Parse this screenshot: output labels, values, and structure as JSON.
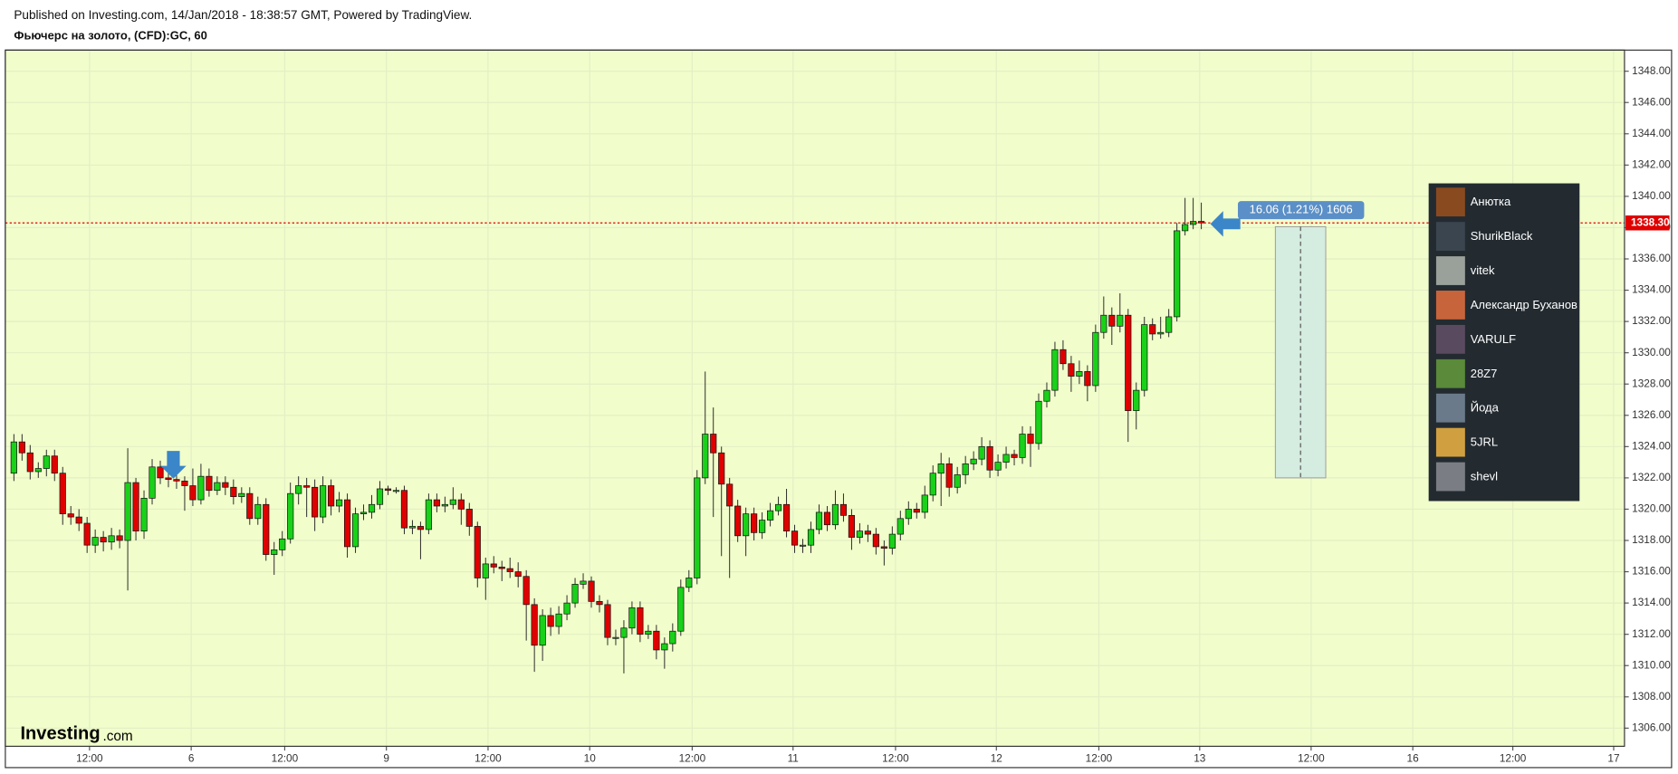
{
  "header": {
    "published": "Published on Investing.com, 14/Jan/2018 - 18:38:57 GMT, Powered by TradingView.",
    "title": "Фьючерс на золото, (CFD):GC, 60"
  },
  "chart_data": {
    "type": "candlestick",
    "up_color": "#19d119",
    "down_color": "#e00000",
    "background": "#f1fdcb",
    "grid": true,
    "ylim": [
      1304.84,
      1349.35
    ],
    "yticks": [
      {
        "value": 1306,
        "label": "1306.00"
      },
      {
        "value": 1308,
        "label": "1308.00"
      },
      {
        "value": 1310,
        "label": "1310.00"
      },
      {
        "value": 1312,
        "label": "1312.00"
      },
      {
        "value": 1314,
        "label": "1314.00"
      },
      {
        "value": 1316,
        "label": "1316.00"
      },
      {
        "value": 1318,
        "label": "1318.00"
      },
      {
        "value": 1320,
        "label": "1320.00"
      },
      {
        "value": 1322,
        "label": "1322.00"
      },
      {
        "value": 1324,
        "label": "1324.00"
      },
      {
        "value": 1326,
        "label": "1326.00"
      },
      {
        "value": 1328,
        "label": "1328.00"
      },
      {
        "value": 1330,
        "label": "1330.00"
      },
      {
        "value": 1332,
        "label": "1332.00"
      },
      {
        "value": 1334,
        "label": "1334.00"
      },
      {
        "value": 1336,
        "label": "1336.00"
      },
      {
        "value": 1338,
        "label": "1338.00"
      },
      {
        "value": 1340,
        "label": "1340.00"
      },
      {
        "value": 1342,
        "label": "1342.00"
      },
      {
        "value": 1344,
        "label": "1344.00"
      },
      {
        "value": 1346,
        "label": "1346.00"
      },
      {
        "value": 1348,
        "label": "1348.00"
      }
    ],
    "xlim": [
      -1.05,
      198.03
    ],
    "xticks": [
      {
        "value": 9.3,
        "label": "12:00"
      },
      {
        "value": 21.8,
        "label": "6"
      },
      {
        "value": 33.3,
        "label": "12:00"
      },
      {
        "value": 45.8,
        "label": "9"
      },
      {
        "value": 58.3,
        "label": "12:00"
      },
      {
        "value": 70.8,
        "label": "10"
      },
      {
        "value": 83.4,
        "label": "12:00"
      },
      {
        "value": 95.8,
        "label": "11"
      },
      {
        "value": 108.4,
        "label": "12:00"
      },
      {
        "value": 120.8,
        "label": "12"
      },
      {
        "value": 133.4,
        "label": "12:00"
      },
      {
        "value": 145.8,
        "label": "13"
      },
      {
        "value": 159.5,
        "label": "12:00"
      },
      {
        "value": 172,
        "label": "16"
      },
      {
        "value": 184.3,
        "label": "12:00"
      },
      {
        "value": 196.7,
        "label": "17"
      }
    ],
    "last_price": {
      "value": 1338.3,
      "label": "1338.30",
      "color": "#e00000"
    },
    "measure": {
      "label": "16.06 (1.21%) 1606",
      "x_from": 155.1,
      "x_to": 161.3,
      "top": 1338.06,
      "bottom": 1322.0
    },
    "ohlc": [
      [
        1322.3,
        1324.8,
        1321.8,
        1324.3
      ],
      [
        1324.3,
        1324.8,
        1323.1,
        1323.6
      ],
      [
        1323.6,
        1324.1,
        1321.9,
        1322.4
      ],
      [
        1322.4,
        1323.0,
        1322.0,
        1322.6
      ],
      [
        1322.6,
        1323.8,
        1322.1,
        1323.4
      ],
      [
        1323.4,
        1323.8,
        1321.8,
        1322.3
      ],
      [
        1322.3,
        1322.7,
        1319.0,
        1319.7
      ],
      [
        1319.7,
        1320.2,
        1319.0,
        1319.5
      ],
      [
        1319.5,
        1320.0,
        1318.6,
        1319.1
      ],
      [
        1319.1,
        1319.5,
        1317.2,
        1317.7
      ],
      [
        1317.7,
        1318.7,
        1317.2,
        1318.2
      ],
      [
        1318.2,
        1318.6,
        1317.3,
        1317.9
      ],
      [
        1317.9,
        1318.8,
        1317.4,
        1318.3
      ],
      [
        1318.3,
        1318.7,
        1317.5,
        1318.0
      ],
      [
        1318.0,
        1323.9,
        1314.8,
        1321.7
      ],
      [
        1321.7,
        1322.0,
        1318.0,
        1318.6
      ],
      [
        1318.6,
        1321.2,
        1318.1,
        1320.7
      ],
      [
        1320.7,
        1323.2,
        1320.3,
        1322.7
      ],
      [
        1322.7,
        1323.1,
        1321.6,
        1322.0
      ],
      [
        1322.0,
        1322.4,
        1321.4,
        1321.9
      ],
      [
        1321.9,
        1322.5,
        1321.3,
        1321.8
      ],
      [
        1321.8,
        1322.1,
        1319.9,
        1321.5
      ],
      [
        1321.5,
        1322.6,
        1320.2,
        1320.6
      ],
      [
        1320.6,
        1322.9,
        1320.3,
        1322.1
      ],
      [
        1322.1,
        1322.6,
        1320.8,
        1321.2
      ],
      [
        1321.2,
        1322.1,
        1320.9,
        1321.7
      ],
      [
        1321.7,
        1322.1,
        1320.9,
        1321.4
      ],
      [
        1321.4,
        1321.9,
        1320.3,
        1320.8
      ],
      [
        1320.8,
        1321.4,
        1320.4,
        1321.0
      ],
      [
        1321.0,
        1321.4,
        1319.0,
        1319.4
      ],
      [
        1319.4,
        1320.8,
        1319.0,
        1320.3
      ],
      [
        1320.3,
        1320.7,
        1316.7,
        1317.1
      ],
      [
        1317.1,
        1317.9,
        1315.8,
        1317.4
      ],
      [
        1317.4,
        1318.6,
        1317.0,
        1318.1
      ],
      [
        1318.1,
        1321.7,
        1317.8,
        1321.0
      ],
      [
        1321.0,
        1322.1,
        1320.3,
        1321.5
      ],
      [
        1321.5,
        1322.0,
        1319.5,
        1321.4
      ],
      [
        1321.4,
        1321.9,
        1318.6,
        1319.5
      ],
      [
        1319.5,
        1322.1,
        1319.1,
        1321.5
      ],
      [
        1321.5,
        1321.9,
        1319.6,
        1320.2
      ],
      [
        1320.2,
        1321.1,
        1319.8,
        1320.6
      ],
      [
        1320.6,
        1321.0,
        1316.9,
        1317.6
      ],
      [
        1317.6,
        1320.1,
        1317.2,
        1319.7
      ],
      [
        1319.7,
        1320.3,
        1319.3,
        1319.8
      ],
      [
        1319.8,
        1320.9,
        1319.4,
        1320.3
      ],
      [
        1320.3,
        1321.8,
        1320.0,
        1321.3
      ],
      [
        1321.3,
        1321.5,
        1320.9,
        1321.2
      ],
      [
        1321.2,
        1321.4,
        1321.0,
        1321.2
      ],
      [
        1321.2,
        1321.5,
        1318.4,
        1318.8
      ],
      [
        1318.8,
        1319.3,
        1318.4,
        1318.9
      ],
      [
        1318.9,
        1319.2,
        1316.8,
        1318.7
      ],
      [
        1318.7,
        1321.0,
        1318.4,
        1320.6
      ],
      [
        1320.6,
        1321.0,
        1319.8,
        1320.2
      ],
      [
        1320.2,
        1320.8,
        1319.8,
        1320.3
      ],
      [
        1320.3,
        1321.4,
        1320.0,
        1320.6
      ],
      [
        1320.6,
        1321.0,
        1319.0,
        1320.0
      ],
      [
        1320.0,
        1320.4,
        1318.3,
        1318.9
      ],
      [
        1318.9,
        1319.2,
        1315.0,
        1315.6
      ],
      [
        1315.6,
        1316.9,
        1314.2,
        1316.5
      ],
      [
        1316.5,
        1317.0,
        1315.9,
        1316.3
      ],
      [
        1316.3,
        1316.7,
        1315.4,
        1316.2
      ],
      [
        1316.2,
        1316.9,
        1315.6,
        1316.0
      ],
      [
        1316.0,
        1316.6,
        1315.0,
        1315.7
      ],
      [
        1315.7,
        1316.1,
        1311.6,
        1313.9
      ],
      [
        1313.9,
        1314.3,
        1309.6,
        1311.3
      ],
      [
        1311.3,
        1313.6,
        1310.3,
        1313.2
      ],
      [
        1313.2,
        1313.7,
        1311.9,
        1312.5
      ],
      [
        1312.5,
        1313.8,
        1312.0,
        1313.3
      ],
      [
        1313.3,
        1314.5,
        1312.9,
        1314.0
      ],
      [
        1314.0,
        1315.6,
        1313.7,
        1315.2
      ],
      [
        1315.2,
        1315.9,
        1314.9,
        1315.4
      ],
      [
        1315.4,
        1315.7,
        1313.7,
        1314.1
      ],
      [
        1314.1,
        1314.5,
        1313.4,
        1313.9
      ],
      [
        1313.9,
        1314.2,
        1311.3,
        1311.8
      ],
      [
        1311.8,
        1312.3,
        1311.3,
        1311.8
      ],
      [
        1311.8,
        1312.9,
        1309.5,
        1312.4
      ],
      [
        1312.4,
        1314.1,
        1312.0,
        1313.7
      ],
      [
        1313.7,
        1314.1,
        1311.5,
        1312.0
      ],
      [
        1312.0,
        1312.6,
        1311.7,
        1312.2
      ],
      [
        1312.2,
        1312.6,
        1310.4,
        1311.0
      ],
      [
        1311.0,
        1311.8,
        1309.8,
        1311.4
      ],
      [
        1311.4,
        1312.7,
        1310.9,
        1312.2
      ],
      [
        1312.2,
        1315.5,
        1311.9,
        1315.0
      ],
      [
        1315.0,
        1316.1,
        1314.7,
        1315.6
      ],
      [
        1315.6,
        1322.5,
        1315.2,
        1322.0
      ],
      [
        1322.0,
        1328.8,
        1321.6,
        1324.8
      ],
      [
        1324.8,
        1326.5,
        1319.5,
        1323.6
      ],
      [
        1323.6,
        1324.0,
        1317.0,
        1321.6
      ],
      [
        1321.6,
        1322.0,
        1315.6,
        1320.2
      ],
      [
        1320.2,
        1320.6,
        1317.9,
        1318.3
      ],
      [
        1318.3,
        1320.1,
        1317.0,
        1319.7
      ],
      [
        1319.7,
        1320.1,
        1318.0,
        1318.5
      ],
      [
        1318.5,
        1319.8,
        1318.1,
        1319.3
      ],
      [
        1319.3,
        1320.4,
        1318.9,
        1319.9
      ],
      [
        1319.9,
        1320.8,
        1319.6,
        1320.3
      ],
      [
        1320.3,
        1321.3,
        1318.2,
        1318.6
      ],
      [
        1318.6,
        1319.0,
        1317.2,
        1317.7
      ],
      [
        1317.7,
        1318.1,
        1317.2,
        1317.7
      ],
      [
        1317.7,
        1319.2,
        1317.2,
        1318.7
      ],
      [
        1318.7,
        1320.3,
        1318.4,
        1319.8
      ],
      [
        1319.8,
        1320.2,
        1318.6,
        1319.0
      ],
      [
        1319.0,
        1321.2,
        1318.7,
        1320.3
      ],
      [
        1320.3,
        1321.0,
        1319.2,
        1319.6
      ],
      [
        1319.6,
        1320.0,
        1317.4,
        1318.2
      ],
      [
        1318.2,
        1319.1,
        1317.8,
        1318.6
      ],
      [
        1318.6,
        1319.0,
        1317.9,
        1318.4
      ],
      [
        1318.4,
        1318.8,
        1317.1,
        1317.6
      ],
      [
        1317.6,
        1318.0,
        1316.4,
        1317.5
      ],
      [
        1317.5,
        1318.9,
        1317.1,
        1318.4
      ],
      [
        1318.4,
        1319.9,
        1318.0,
        1319.4
      ],
      [
        1319.4,
        1320.5,
        1319.0,
        1320.0
      ],
      [
        1320.0,
        1320.4,
        1319.4,
        1319.8
      ],
      [
        1319.8,
        1321.5,
        1319.4,
        1320.9
      ],
      [
        1320.9,
        1322.8,
        1320.5,
        1322.3
      ],
      [
        1322.3,
        1323.6,
        1320.2,
        1322.9
      ],
      [
        1322.9,
        1323.3,
        1320.8,
        1321.4
      ],
      [
        1321.4,
        1322.7,
        1321.0,
        1322.2
      ],
      [
        1322.2,
        1323.4,
        1321.6,
        1322.9
      ],
      [
        1322.9,
        1323.7,
        1322.5,
        1323.2
      ],
      [
        1323.2,
        1324.6,
        1322.8,
        1324.0
      ],
      [
        1324.0,
        1324.4,
        1322.0,
        1322.5
      ],
      [
        1322.5,
        1323.5,
        1322.1,
        1323.0
      ],
      [
        1323.0,
        1324.0,
        1322.6,
        1323.5
      ],
      [
        1323.5,
        1323.8,
        1322.8,
        1323.3
      ],
      [
        1323.3,
        1325.3,
        1322.9,
        1324.8
      ],
      [
        1324.8,
        1325.3,
        1322.7,
        1324.2
      ],
      [
        1324.2,
        1327.4,
        1323.8,
        1326.9
      ],
      [
        1326.9,
        1328.1,
        1326.5,
        1327.6
      ],
      [
        1327.6,
        1330.7,
        1327.2,
        1330.2
      ],
      [
        1330.2,
        1330.8,
        1328.9,
        1329.3
      ],
      [
        1329.3,
        1329.8,
        1327.5,
        1328.5
      ],
      [
        1328.5,
        1329.5,
        1328.0,
        1328.8
      ],
      [
        1328.8,
        1329.2,
        1326.9,
        1327.9
      ],
      [
        1327.9,
        1331.8,
        1327.5,
        1331.3
      ],
      [
        1331.3,
        1333.6,
        1330.9,
        1332.4
      ],
      [
        1332.4,
        1332.9,
        1330.5,
        1331.7
      ],
      [
        1331.7,
        1333.8,
        1331.3,
        1332.4
      ],
      [
        1332.4,
        1332.8,
        1324.3,
        1326.3
      ],
      [
        1326.3,
        1328.1,
        1325.1,
        1327.6
      ],
      [
        1327.6,
        1332.3,
        1327.2,
        1331.8
      ],
      [
        1331.8,
        1332.2,
        1330.8,
        1331.2
      ],
      [
        1331.2,
        1332.3,
        1330.9,
        1331.3
      ],
      [
        1331.3,
        1332.8,
        1331.0,
        1332.3
      ],
      [
        1332.3,
        1338.3,
        1332.0,
        1337.8
      ],
      [
        1337.8,
        1339.9,
        1337.5,
        1338.2
      ],
      [
        1338.2,
        1339.9,
        1337.9,
        1338.4
      ],
      [
        1338.4,
        1339.6,
        1337.9,
        1338.3
      ]
    ]
  },
  "logo": {
    "name": "Investing",
    "suffix": ".com"
  },
  "viewers": [
    "Анютка",
    "ShurikBlack",
    "vitek",
    "Александр Буханов",
    "VARULF",
    "28Z7",
    "Йода",
    "5JRL",
    "shevl"
  ]
}
